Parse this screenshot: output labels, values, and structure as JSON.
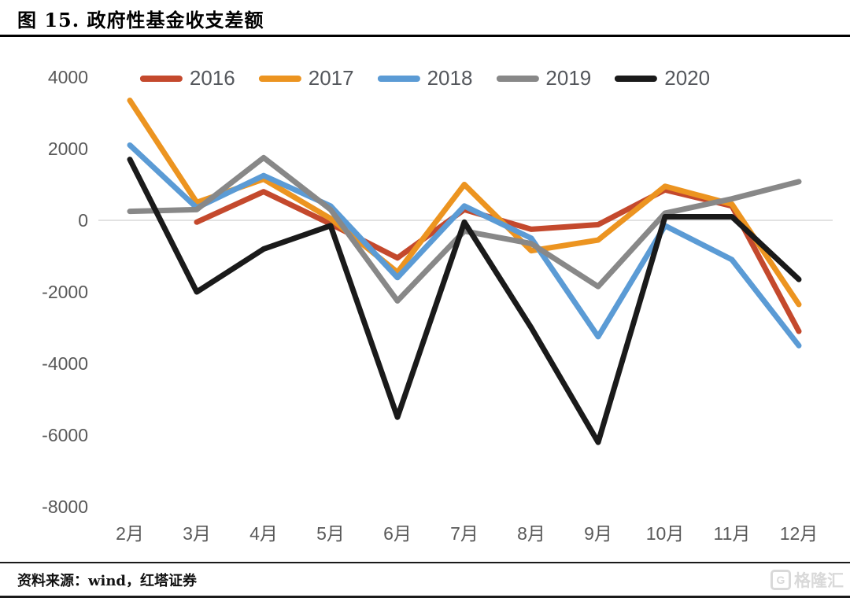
{
  "header": {
    "title": "图 15. 政府性基金收支差额"
  },
  "footer": {
    "source": "资料来源：wind，红塔证券",
    "watermark": "格隆汇"
  },
  "colors": {
    "zero_line": "#d8d8d8",
    "axis_text": "#595959",
    "rule": "#000000"
  },
  "chart_data": {
    "type": "line",
    "title": "政府性基金收支差额",
    "categories": [
      "2月",
      "3月",
      "4月",
      "5月",
      "6月",
      "7月",
      "8月",
      "9月",
      "10月",
      "11月",
      "12月"
    ],
    "series": [
      {
        "name": "2016",
        "color": "#c4492d",
        "values": [
          null,
          -50,
          800,
          -100,
          -1050,
          300,
          -250,
          -120,
          850,
          400,
          -3100
        ]
      },
      {
        "name": "2017",
        "color": "#ec9420",
        "values": [
          3350,
          500,
          1150,
          50,
          -1450,
          1000,
          -850,
          -550,
          950,
          450,
          -2350
        ]
      },
      {
        "name": "2018",
        "color": "#5b9bd5",
        "values": [
          2100,
          350,
          1250,
          400,
          -1600,
          400,
          -500,
          -3250,
          -150,
          -1100,
          -3500
        ]
      },
      {
        "name": "2019",
        "color": "#888888",
        "values": [
          250,
          300,
          1750,
          300,
          -2250,
          -300,
          -650,
          -1850,
          200,
          600,
          1080
        ]
      },
      {
        "name": "2020",
        "color": "#1a1a1a",
        "values": [
          1700,
          -2000,
          -800,
          -150,
          -5500,
          -50,
          -3000,
          -6200,
          100,
          100,
          -1650
        ]
      }
    ],
    "yticks": [
      4000,
      2000,
      0,
      -2000,
      -4000,
      -6000,
      -8000
    ],
    "ylim": [
      -8000,
      4000
    ],
    "xlabel": "",
    "ylabel": "",
    "grid": "zero-line-only",
    "legend_position": "top"
  }
}
